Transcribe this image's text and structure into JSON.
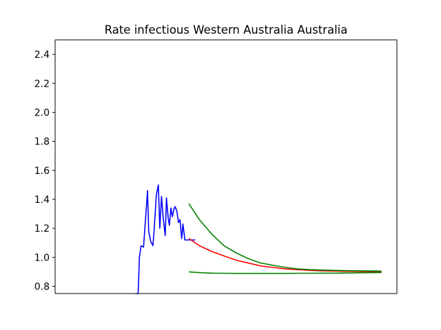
{
  "chart_data": {
    "type": "line",
    "title": "Rate infectious Western Australia Australia",
    "xlabel": "",
    "ylabel": "",
    "ylim": [
      0.75,
      2.5
    ],
    "xlim": [
      0,
      100
    ],
    "yticks": [
      "0.8",
      "1.0",
      "1.2",
      "1.4",
      "1.6",
      "1.8",
      "2.0",
      "2.2",
      "2.4"
    ],
    "x_tick_labels_visible": false,
    "grid": false,
    "series": [
      {
        "color": "#0000ff",
        "x": [
          0.0,
          1.1,
          1.6,
          2.3,
          3.3,
          4.9,
          5.4,
          6.2,
          7.1,
          7.6,
          8.5,
          9.3,
          9.9,
          10.6,
          11.3,
          12.1,
          12.6,
          13.3,
          13.8,
          14.4,
          15.0,
          15.6,
          16.1,
          16.8,
          17.5,
          18.1,
          18.8,
          19.3,
          20.1,
          20.6,
          21.7,
          24.3
        ],
        "y": [
          0.75,
          0.75,
          1.0,
          1.08,
          1.07,
          1.46,
          1.18,
          1.11,
          1.08,
          1.19,
          1.43,
          1.5,
          1.2,
          1.42,
          1.27,
          1.15,
          1.41,
          1.27,
          1.22,
          1.34,
          1.28,
          1.33,
          1.35,
          1.32,
          1.24,
          1.26,
          1.13,
          1.23,
          1.12,
          1.12,
          1.12,
          1.12
        ]
      },
      {
        "color": "#ff0000",
        "x": [
          21.7,
          26,
          31,
          36,
          41,
          46,
          51,
          56,
          61,
          66,
          71,
          76,
          81,
          86,
          91,
          96,
          100
        ],
        "y": [
          1.13,
          1.08,
          1.04,
          1.01,
          0.98,
          0.96,
          0.94,
          0.93,
          0.92,
          0.915,
          0.91,
          0.907,
          0.905,
          0.903,
          0.902,
          0.901,
          0.9
        ]
      },
      {
        "color": "#008000",
        "x": [
          21.7,
          26,
          31,
          36,
          41,
          46,
          51,
          56,
          61,
          66,
          71,
          76,
          81,
          86,
          91,
          96,
          100
        ],
        "y": [
          1.37,
          1.26,
          1.16,
          1.08,
          1.03,
          0.99,
          0.96,
          0.945,
          0.93,
          0.92,
          0.915,
          0.912,
          0.91,
          0.908,
          0.907,
          0.906,
          0.905
        ]
      },
      {
        "color": "#008000",
        "x": [
          21.7,
          26,
          31,
          36,
          41,
          46,
          51,
          56,
          61,
          66,
          71,
          76,
          81,
          86,
          91,
          96,
          100
        ],
        "y": [
          0.9,
          0.894,
          0.891,
          0.89,
          0.889,
          0.889,
          0.889,
          0.889,
          0.889,
          0.89,
          0.89,
          0.891,
          0.891,
          0.892,
          0.893,
          0.894,
          0.895
        ]
      }
    ]
  }
}
